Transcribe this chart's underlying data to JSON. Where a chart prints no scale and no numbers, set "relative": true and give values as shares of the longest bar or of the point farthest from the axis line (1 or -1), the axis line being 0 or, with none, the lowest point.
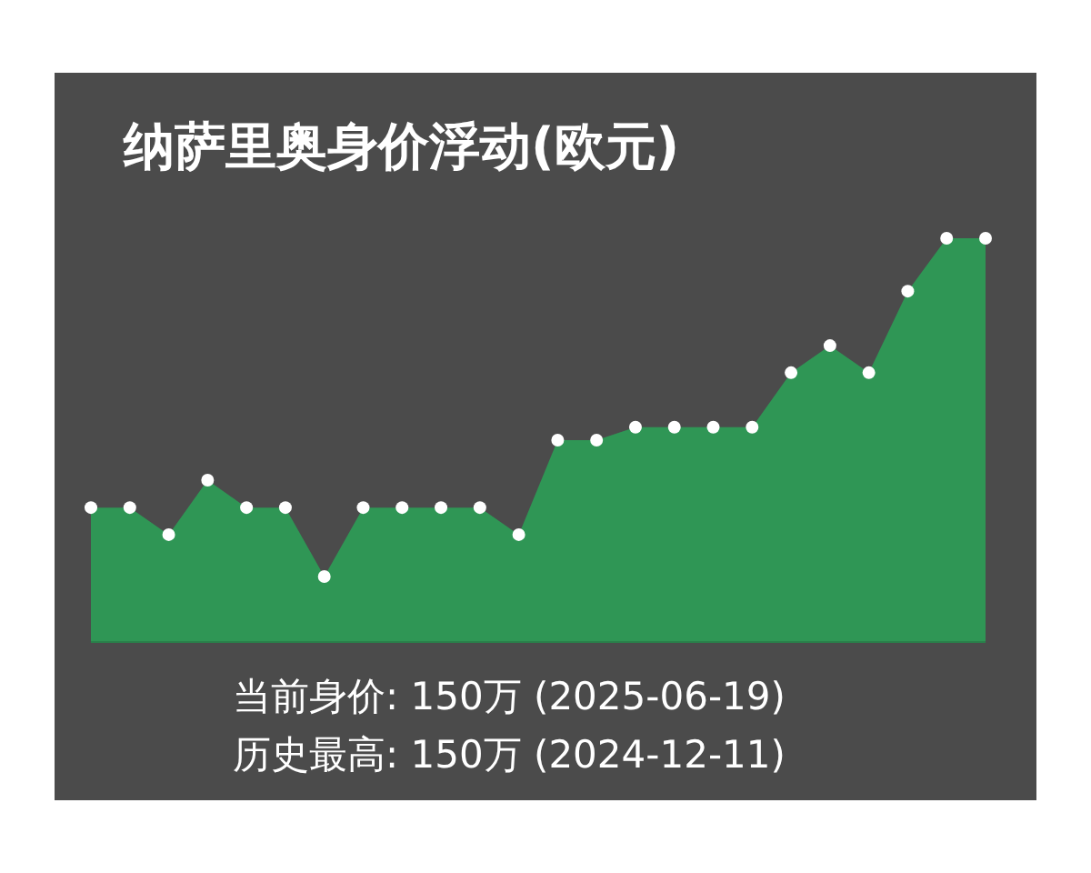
{
  "chart_data": {
    "type": "area",
    "title": "纳萨里奥身价浮动(欧元)",
    "relative": true,
    "marker": "circle",
    "categories": [
      null,
      null,
      null,
      null,
      null,
      null,
      null,
      null,
      null,
      null,
      null,
      null,
      null,
      null,
      null,
      null,
      null,
      null,
      null,
      null,
      null,
      null,
      null,
      null
    ],
    "series": [
      {
        "color": "#2f9655",
        "values": [
          0.333,
          0.333,
          0.266,
          0.401,
          0.333,
          0.333,
          0.162,
          0.333,
          0.333,
          0.333,
          0.333,
          0.266,
          0.5,
          0.5,
          0.532,
          0.532,
          0.532,
          0.532,
          0.667,
          0.734,
          0.667,
          0.869,
          1,
          1
        ]
      }
    ],
    "annotations": [
      "当前身价: 150万 (2025-06-19)",
      "历史最高: 150万 (2024-12-11)"
    ]
  }
}
